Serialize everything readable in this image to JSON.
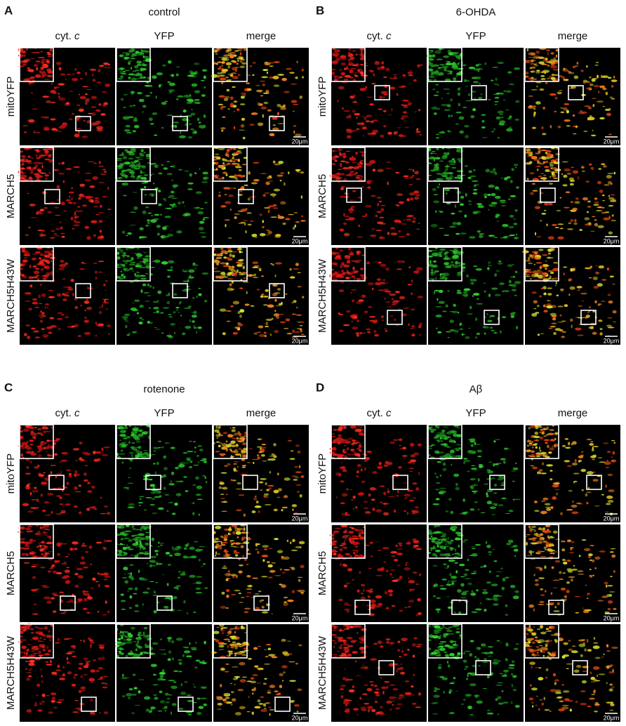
{
  "panels": [
    {
      "letter": "A",
      "title": "control",
      "columns": [
        {
          "text": "cyt.",
          "italic": "c"
        },
        {
          "text": "YFP"
        },
        {
          "text": "merge"
        }
      ],
      "rows": [
        "mitoYFP",
        "MARCH5",
        "MARCH5H43W"
      ],
      "scale_bar": "20μm"
    },
    {
      "letter": "B",
      "title": "6-OHDA",
      "columns": [
        {
          "text": "cyt.",
          "italic": "c"
        },
        {
          "text": "YFP"
        },
        {
          "text": "merge"
        }
      ],
      "rows": [
        "mitoYFP",
        "MARCH5",
        "MARCH5H43W"
      ],
      "scale_bar": "20μm"
    },
    {
      "letter": "C",
      "title": "rotenone",
      "columns": [
        {
          "text": "cyt.",
          "italic": "c"
        },
        {
          "text": "YFP"
        },
        {
          "text": "merge"
        }
      ],
      "rows": [
        "mitoYFP",
        "MARCH5",
        "MARCH5H43W"
      ],
      "scale_bar": "20μm"
    },
    {
      "letter": "D",
      "title": "Aβ",
      "columns": [
        {
          "text": "cyt.",
          "italic": "c"
        },
        {
          "text": "YFP"
        },
        {
          "text": "merge"
        }
      ],
      "rows": [
        "mitoYFP",
        "MARCH5",
        "MARCH5H43W"
      ],
      "scale_bar": "20μm"
    }
  ]
}
